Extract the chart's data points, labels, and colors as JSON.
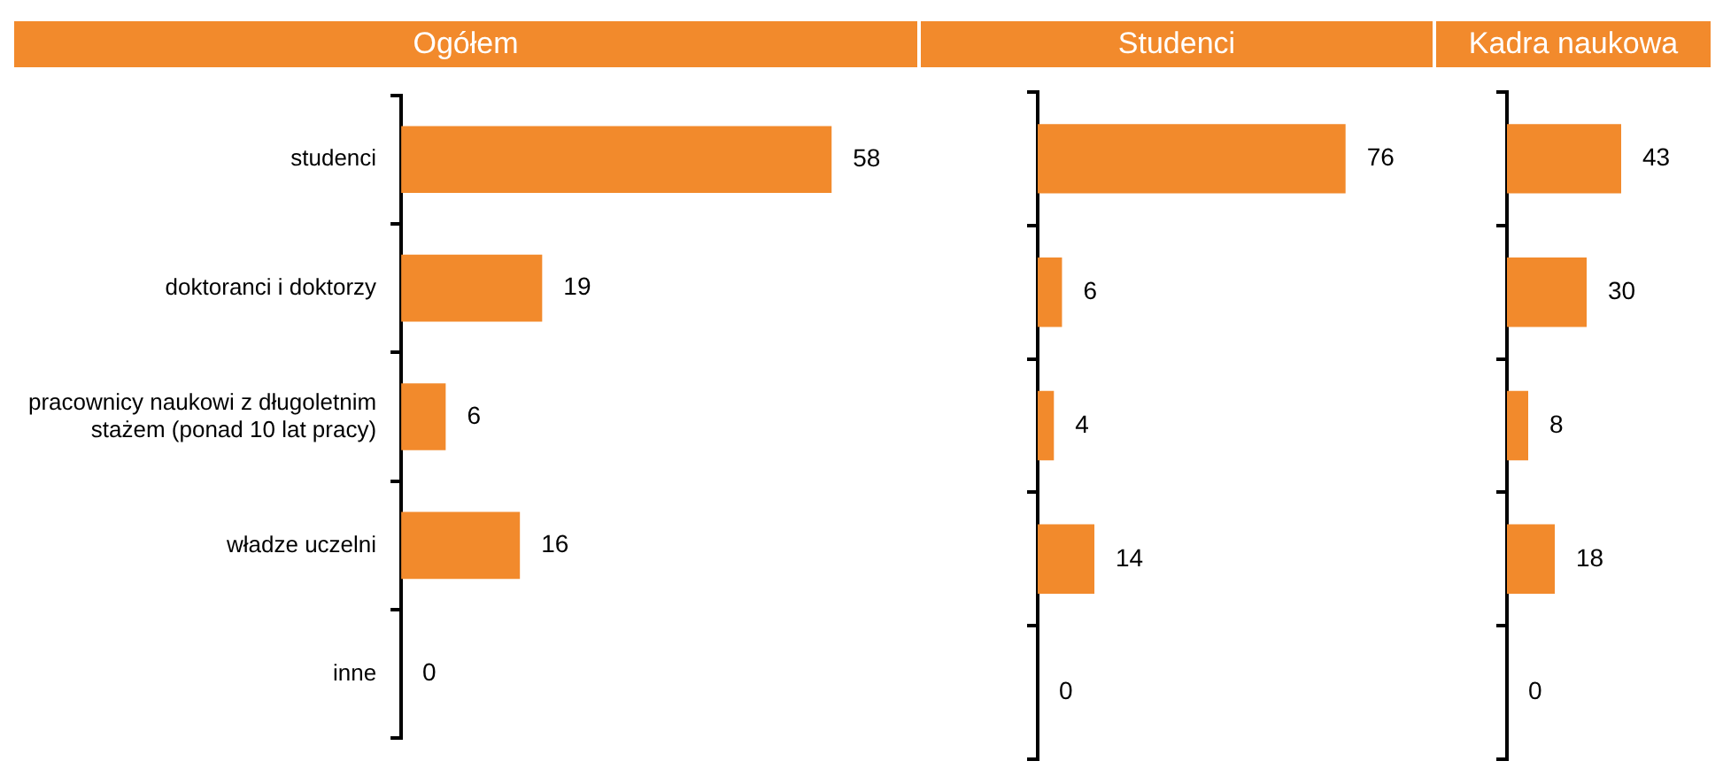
{
  "chart_data": [
    {
      "type": "bar",
      "orientation": "horizontal",
      "title": "Ogółem",
      "categories": [
        "studenci",
        "doktoranci i doktorzy",
        "pracownicy naukowi z długoletnim stażem (ponad 10 lat pracy)",
        "władze uczelni",
        "inne"
      ],
      "values": [
        58,
        19,
        6,
        16,
        0
      ],
      "color": "#f28a2c",
      "data_labels": true,
      "grid": false,
      "legend": false,
      "tick_labels": "y"
    },
    {
      "type": "bar",
      "orientation": "horizontal",
      "title": "Studenci",
      "categories": [
        null,
        null,
        null,
        null,
        null
      ],
      "values": [
        76,
        6,
        4,
        14,
        0
      ],
      "color": "#f28a2c",
      "data_labels": true,
      "grid": false,
      "legend": false,
      "tick_labels": false
    },
    {
      "type": "bar",
      "orientation": "horizontal",
      "title": "Kadra naukowa",
      "categories": [
        null,
        null,
        null,
        null,
        null
      ],
      "values": [
        43,
        30,
        8,
        18,
        0
      ],
      "color": "#f28a2c",
      "data_labels": true,
      "grid": false,
      "legend": false,
      "tick_labels": false
    }
  ]
}
